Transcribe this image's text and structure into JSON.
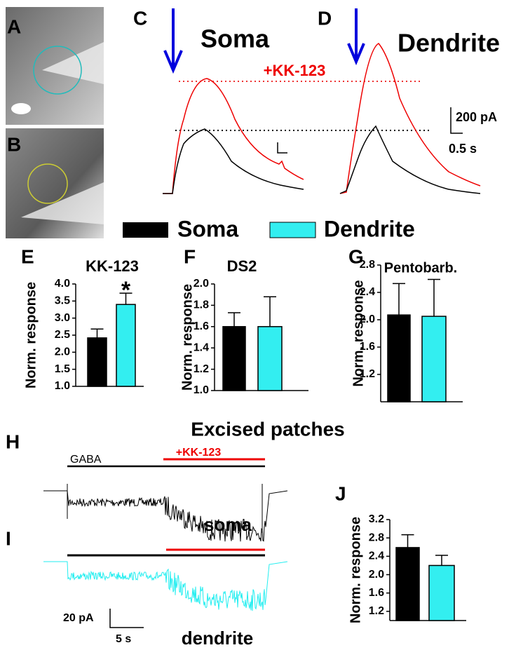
{
  "chart_data": [
    {
      "type": "bar",
      "title": "KK-123",
      "y_label": "Norm. response",
      "annotation": "*",
      "values": [
        2.42,
        3.4
      ],
      "errors": [
        0.26,
        0.33
      ],
      "colors": [
        "#000000",
        "#33eef0"
      ],
      "ylim": [
        1.0,
        4.0
      ],
      "yticks": [
        {
          "value": 1.0,
          "label": "1.0"
        },
        {
          "value": 1.5,
          "label": "1.5"
        },
        {
          "value": 2.0,
          "label": "2.0"
        },
        {
          "value": 2.5,
          "label": "2.5"
        },
        {
          "value": 3.0,
          "label": "3.0"
        },
        {
          "value": 3.5,
          "label": "3.5"
        },
        {
          "value": 4.0,
          "label": "4.0"
        }
      ]
    },
    {
      "type": "bar",
      "title": "DS2",
      "y_label": "Norm. response",
      "values": [
        1.6,
        1.6
      ],
      "errors": [
        0.13,
        0.28
      ],
      "colors": [
        "#000000",
        "#33eef0"
      ],
      "ylim": [
        1.0,
        2.0
      ],
      "yticks": [
        {
          "value": 1.0,
          "label": "1.0"
        },
        1.2,
        1.4,
        1.6,
        1.8,
        {
          "value": 2.0,
          "label": "2.0"
        }
      ]
    },
    {
      "type": "bar",
      "title": "Pentobarb.",
      "y_label": "Norm. response",
      "values": [
        2.07,
        2.05
      ],
      "errors": [
        0.46,
        0.54
      ],
      "colors": [
        "#000000",
        "#33eef0"
      ],
      "ylim": [
        0.8,
        2.8
      ],
      "yticks": [
        1.2,
        1.6,
        {
          "value": 2.0,
          "label": "2.0"
        },
        2.4,
        2.8
      ]
    },
    {
      "type": "bar",
      "y_label": "Norm. response",
      "values": [
        2.59,
        2.2
      ],
      "errors": [
        0.28,
        0.22
      ],
      "colors": [
        "#000000",
        "#33eef0"
      ],
      "ylim": [
        1.0,
        3.2
      ],
      "yticks": [
        1.2,
        1.6,
        {
          "value": 2.0,
          "label": "2.0"
        },
        2.4,
        2.8,
        3.2
      ]
    }
  ],
  "figure": {
    "panel_letters": [
      "A",
      "B",
      "C",
      "D",
      "E",
      "F",
      "G",
      "H",
      "I",
      "J"
    ],
    "soma_label": "Soma",
    "dendrite_label": "Dendrite",
    "drug_label": "+KK-123",
    "scale_current": "200 pA",
    "scale_time": "0.5 s",
    "legend": [
      {
        "name": "Soma",
        "color": "#000000"
      },
      {
        "name": "Dendrite",
        "color": "#33eef0"
      }
    ],
    "patch_title": "Excised patches",
    "gaba_label": "GABA",
    "patch_drug_label": "+KK-123",
    "trace_soma": "soma",
    "trace_dendrite": "dendrite",
    "patch_scale_current": "20 pA",
    "patch_scale_time": "5 s"
  }
}
